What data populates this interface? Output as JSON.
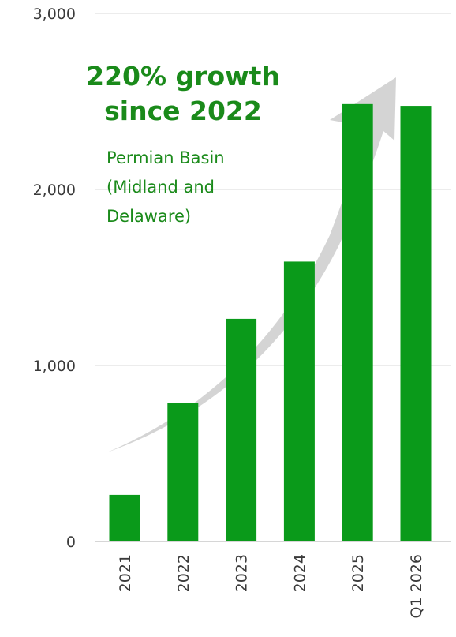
{
  "chart_data": {
    "type": "bar",
    "categories": [
      "2021",
      "2022",
      "2023",
      "2024",
      "2025",
      "Q1 2026"
    ],
    "values": [
      265,
      785,
      1265,
      1590,
      2485,
      2475
    ],
    "ylim": [
      0,
      3000
    ],
    "yticks": [
      0,
      1000,
      2000,
      3000
    ],
    "ytick_labels": [
      "0",
      "1,000",
      "2,000",
      "3,000"
    ],
    "grid": true,
    "bar_color": "#0a9a1a",
    "arrow_color": "#d0d0d0",
    "annotations": {
      "headline_lines": [
        "220% growth",
        "since 2022"
      ],
      "note_lines": [
        "Permian Basin",
        "(Midland and",
        "Delaware)"
      ]
    }
  }
}
